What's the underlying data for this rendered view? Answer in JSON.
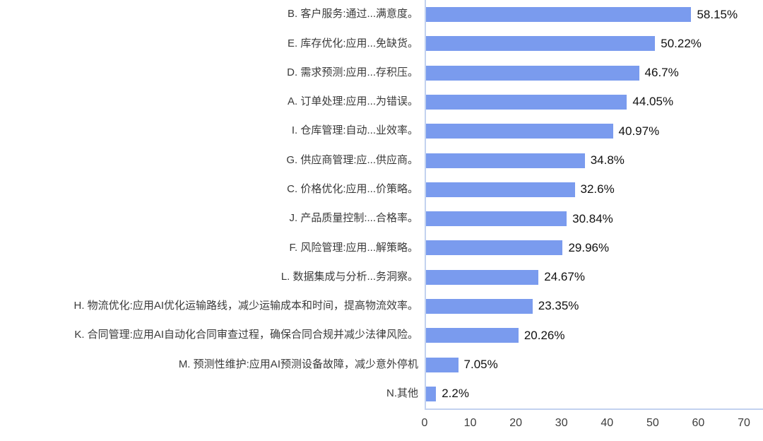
{
  "chart_data": {
    "type": "bar",
    "orientation": "horizontal",
    "categories": [
      "B. 客户服务:通过...满意度。",
      "E. 库存优化:应用...免缺货。",
      "D. 需求预测:应用...存积压。",
      "A. 订单处理:应用...为错误。",
      "I. 仓库管理:自动...业效率。",
      "G. 供应商管理:应...供应商。",
      "C. 价格优化:应用...价策略。",
      "J. 产品质量控制:...合格率。",
      "F. 风险管理:应用...解策略。",
      "L. 数据集成与分析...务洞察。",
      "H. 物流优化:应用AI优化运输路线，减少运输成本和时间，提高物流效率。",
      "K. 合同管理:应用AI自动化合同审查过程，确保合同合规并减少法律风险。",
      "M. 预测性维护:应用AI预测设备故障，减少意外停机",
      "N.其他"
    ],
    "values": [
      58.15,
      50.22,
      46.7,
      44.05,
      40.97,
      34.8,
      32.6,
      30.84,
      29.96,
      24.67,
      23.35,
      20.26,
      7.05,
      2.2
    ],
    "value_labels": [
      "58.15%",
      "50.22%",
      "46.7%",
      "44.05%",
      "40.97%",
      "34.8%",
      "32.6%",
      "30.84%",
      "29.96%",
      "24.67%",
      "23.35%",
      "20.26%",
      "7.05%",
      "2.2%"
    ],
    "xlim": [
      0,
      70
    ],
    "x_ticks": [
      0,
      10,
      20,
      30,
      40,
      50,
      60,
      70
    ],
    "grid": false,
    "legend": "none",
    "colors": {
      "bar": "#7a9bee",
      "axis_line": "#c3d2ef",
      "category_text": "#3a3a3a",
      "value_text": "#111111",
      "tick_text": "#3d3d3d",
      "background": "#ffffff"
    }
  }
}
